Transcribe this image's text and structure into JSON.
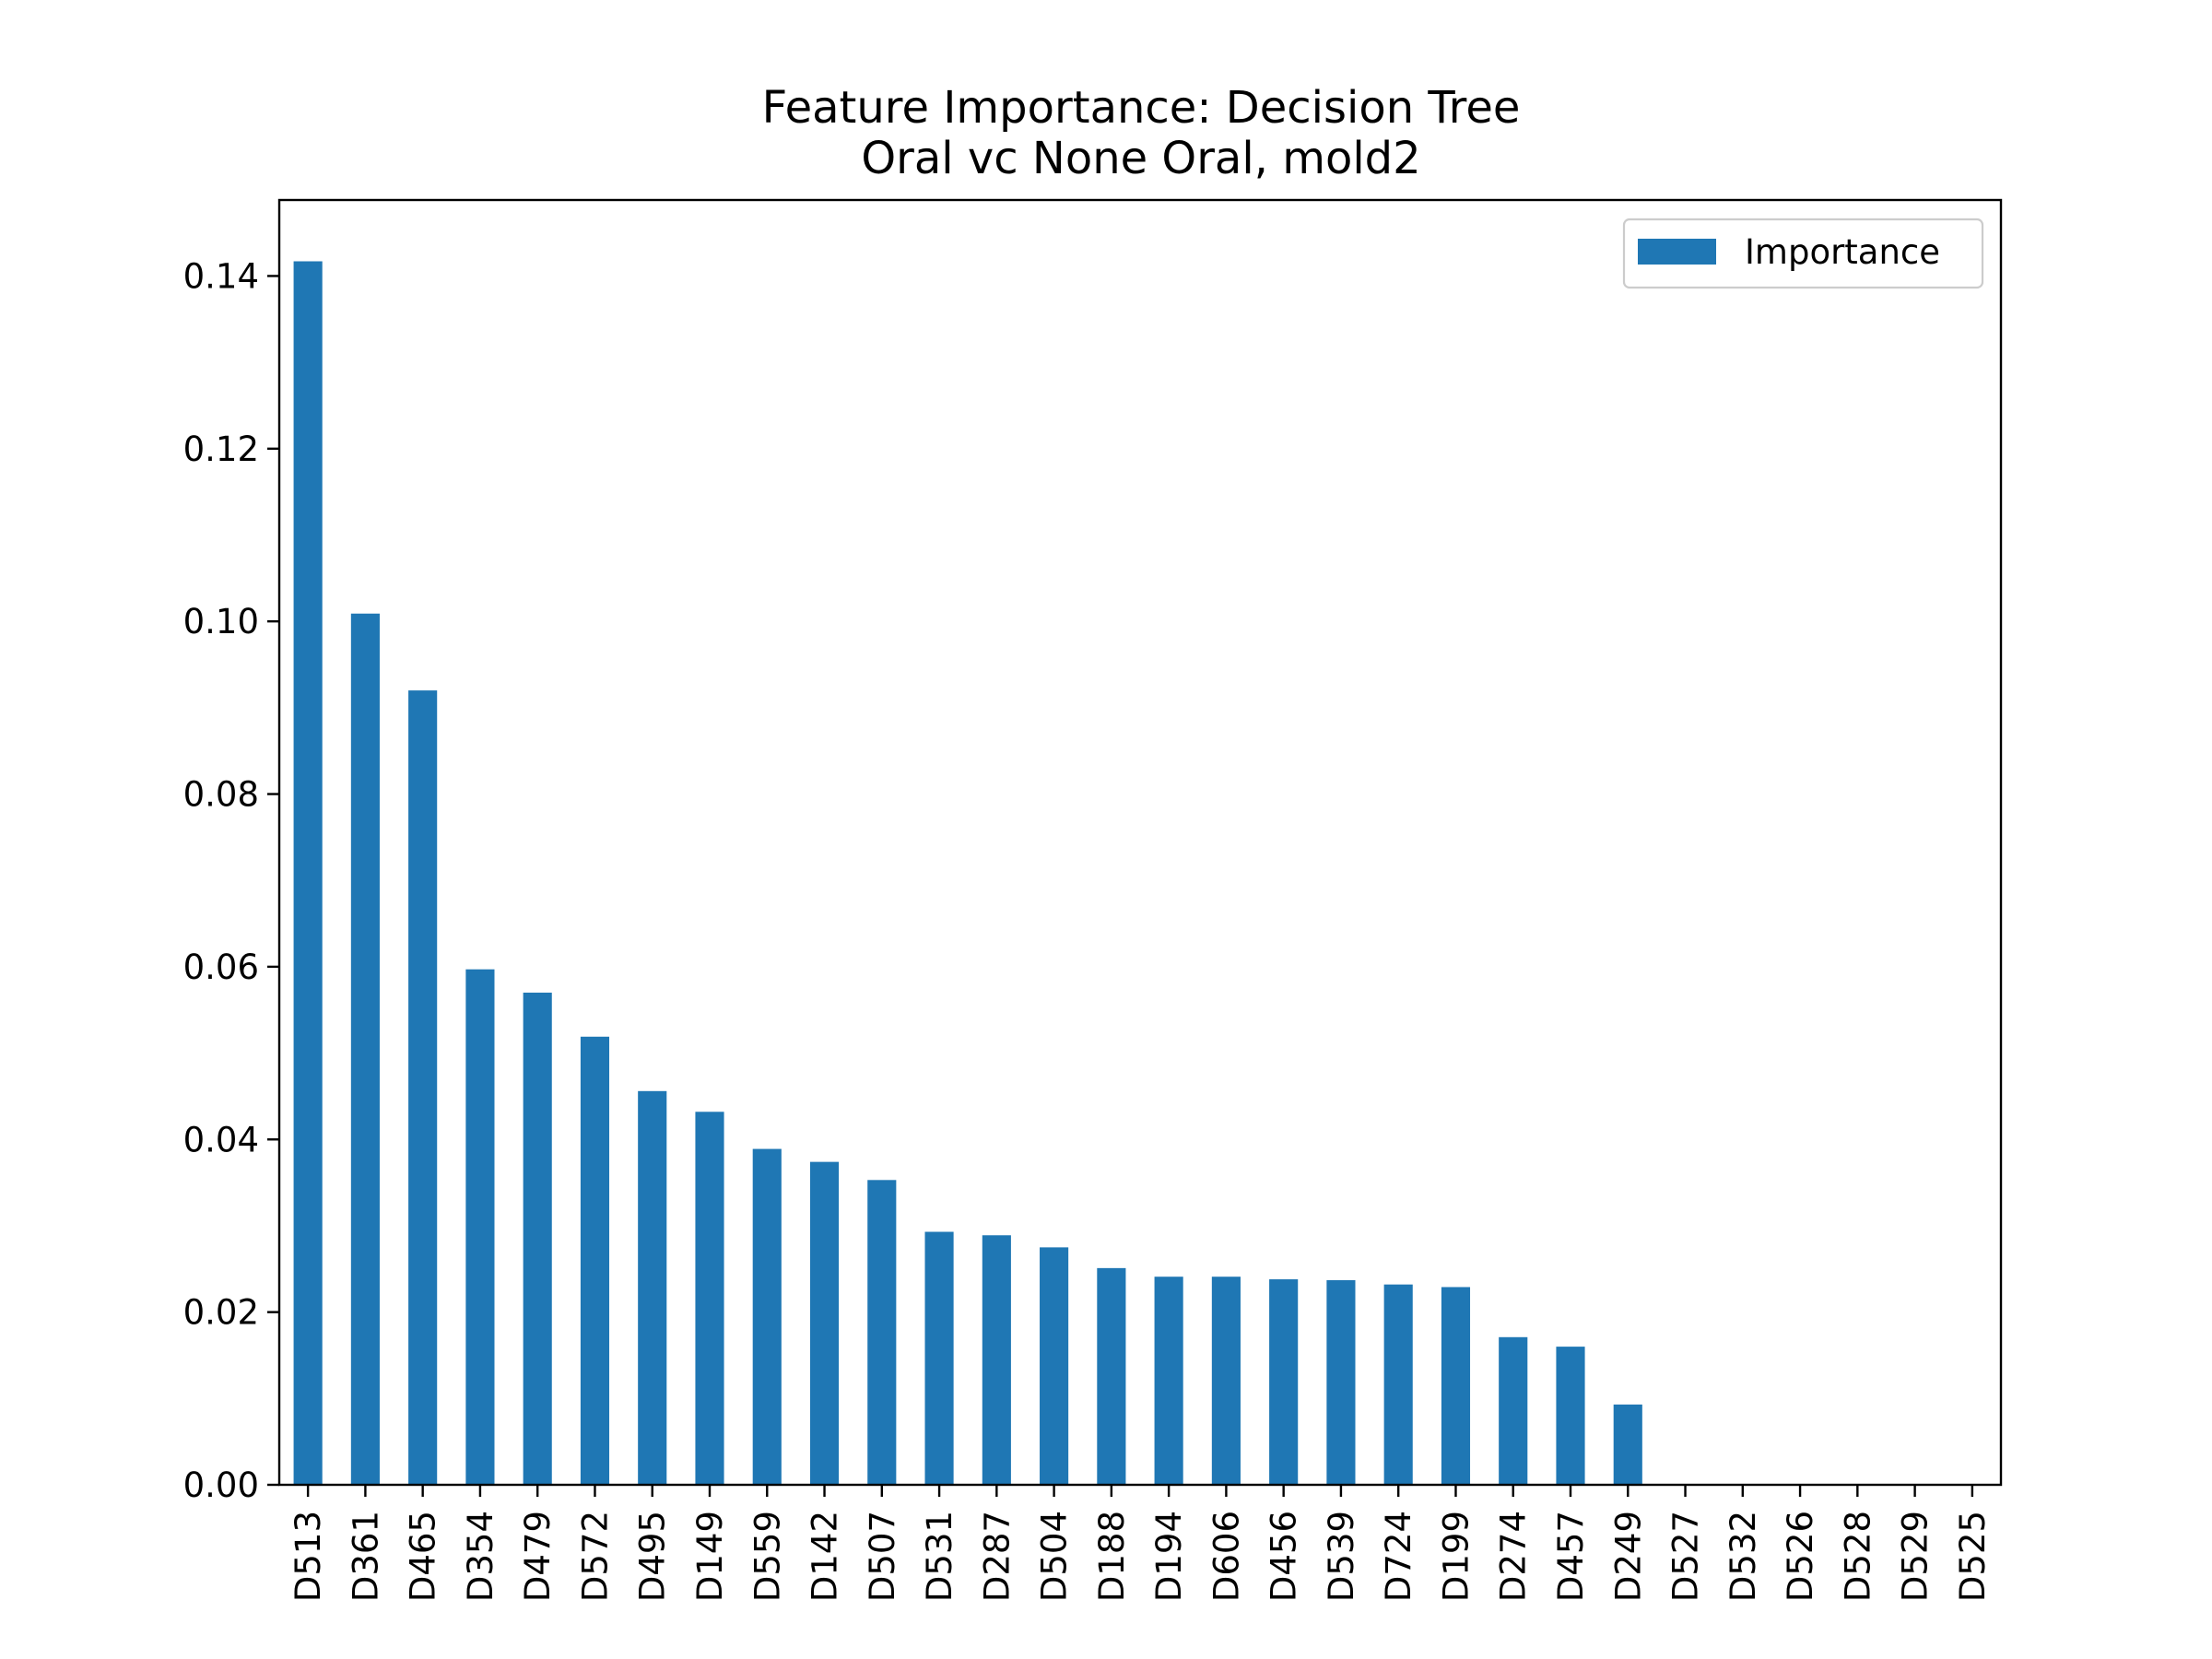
{
  "chart_data": {
    "type": "bar",
    "title": "Feature Importance: Decision Tree",
    "subtitle": "Oral vc None Oral, mold2",
    "xlabel": "",
    "ylabel": "",
    "categories": [
      "D513",
      "D361",
      "D465",
      "D354",
      "D479",
      "D572",
      "D495",
      "D149",
      "D559",
      "D142",
      "D507",
      "D531",
      "D287",
      "D504",
      "D188",
      "D194",
      "D606",
      "D456",
      "D539",
      "D724",
      "D199",
      "D274",
      "D457",
      "D249",
      "D527",
      "D532",
      "D526",
      "D528",
      "D529",
      "D525"
    ],
    "series": [
      {
        "name": "Importance",
        "color": "#1f77b4",
        "values": [
          0.1417,
          0.1009,
          0.092,
          0.0597,
          0.057,
          0.0519,
          0.0456,
          0.0432,
          0.0389,
          0.0374,
          0.0353,
          0.0293,
          0.0289,
          0.0275,
          0.0251,
          0.0241,
          0.0241,
          0.0238,
          0.0237,
          0.0232,
          0.0229,
          0.0171,
          0.016,
          0.0093,
          0,
          0,
          0,
          0,
          0,
          0
        ]
      }
    ],
    "ylim": [
      0,
      0.1488
    ],
    "yticks": [
      0.0,
      0.02,
      0.04,
      0.06,
      0.08,
      0.1,
      0.12,
      0.14
    ],
    "ytick_labels": [
      "0.00",
      "0.02",
      "0.04",
      "0.06",
      "0.08",
      "0.10",
      "0.12",
      "0.14"
    ],
    "grid": false,
    "legend_position": "top-right"
  }
}
